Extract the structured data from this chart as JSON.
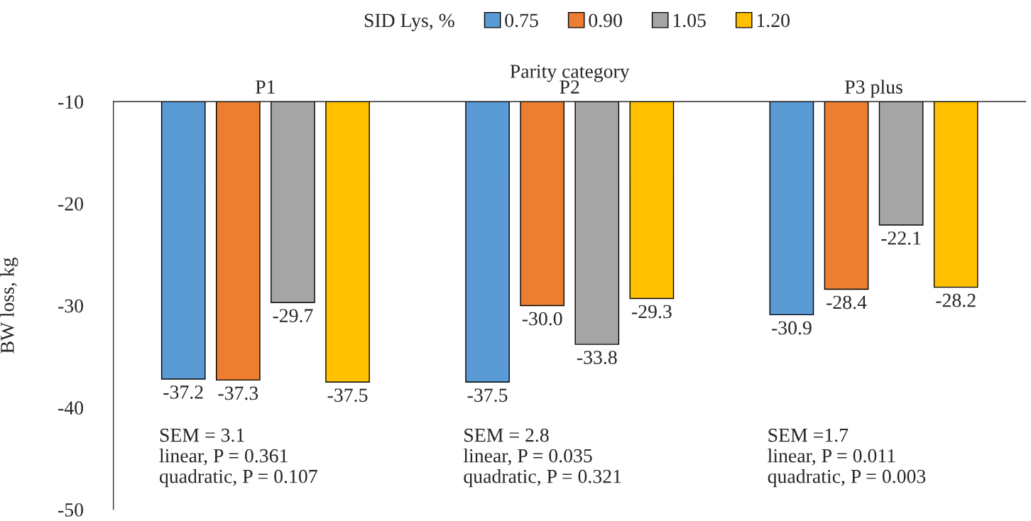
{
  "chart_data": {
    "type": "bar",
    "xlabel": "Parity category",
    "ylabel": "BW loss, kg",
    "legend_title": "SID Lys, %",
    "categories": [
      "P1",
      "P2",
      "P3 plus"
    ],
    "series": [
      {
        "name": "0.75",
        "color": "#5b9bd5",
        "values": [
          -37.2,
          -37.5,
          -30.9
        ],
        "value_labels": [
          "-37.2",
          "-37.5",
          "-30.9"
        ]
      },
      {
        "name": "0.90",
        "color": "#ed7d31",
        "values": [
          -37.3,
          -30.0,
          -28.4
        ],
        "value_labels": [
          "-37.3",
          "-30.0",
          "-28.4"
        ]
      },
      {
        "name": "1.05",
        "color": "#a5a5a5",
        "values": [
          -29.7,
          -33.8,
          -22.1
        ],
        "value_labels": [
          "-29.7",
          "-33.8",
          "-22.1"
        ]
      },
      {
        "name": "1.20",
        "color": "#ffc000",
        "values": [
          -37.5,
          -29.3,
          -28.2
        ],
        "value_labels": [
          "-37.5",
          "-29.3",
          "-28.2"
        ]
      }
    ],
    "ylim": [
      -50,
      -10
    ],
    "yticks": [
      -50,
      -40,
      -30,
      -20,
      -10
    ],
    "annotations": [
      "SEM = 3.1\nlinear, P = 0.361\nquadratic, P = 0.107",
      "SEM = 2.8\nlinear, P = 0.035\nquadratic, P = 0.321",
      "SEM =1.7\nlinear, P = 0.011\nquadratic, P = 0.003"
    ],
    "legend": "top",
    "grid": false
  }
}
